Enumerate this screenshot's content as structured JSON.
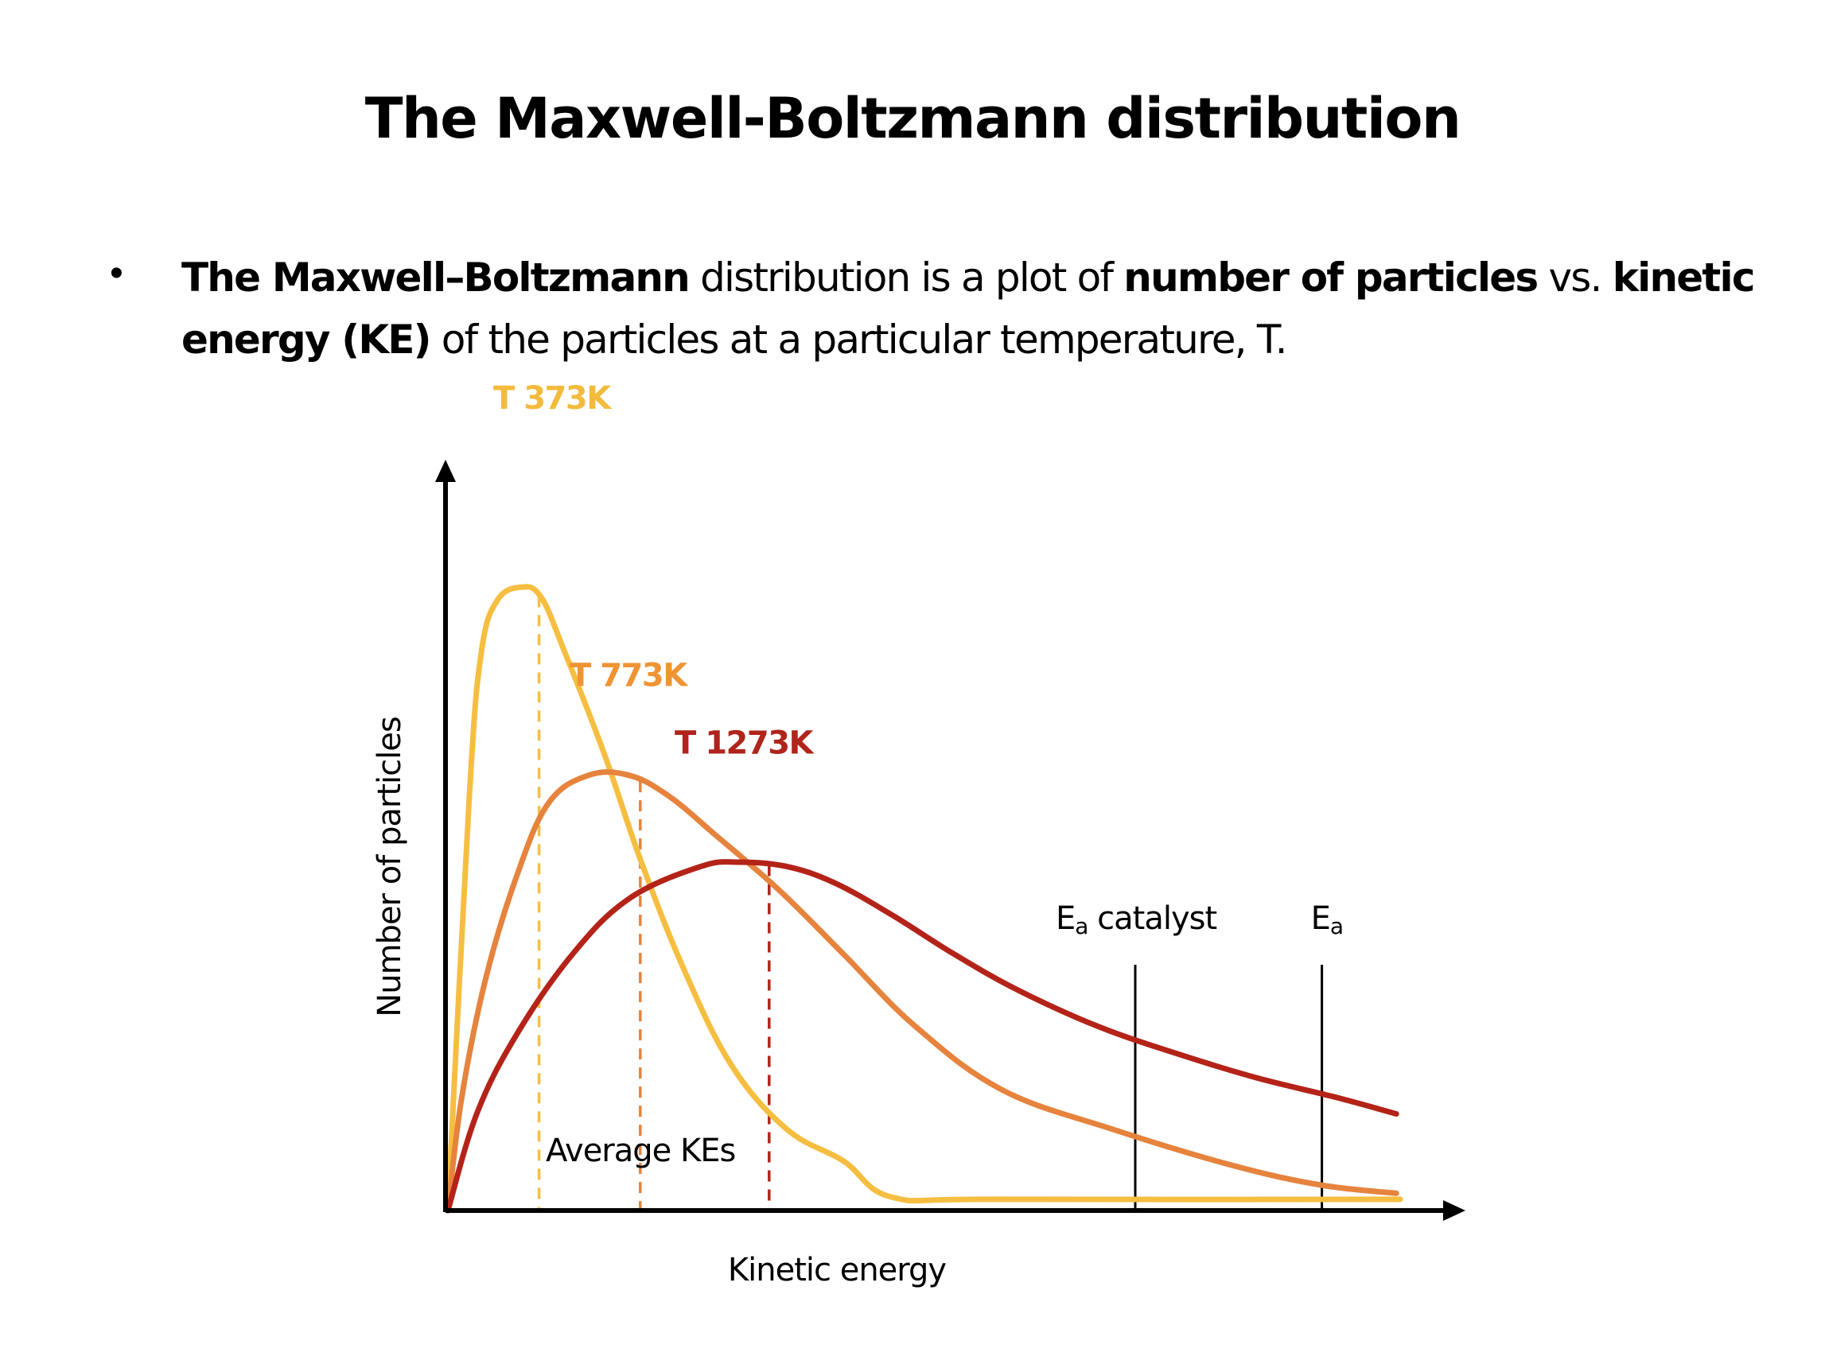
{
  "slide": {
    "title": "The Maxwell-Boltzmann distribution",
    "bullet": {
      "symbol": "•",
      "segments": [
        {
          "text": "The Maxwell–Boltzmann",
          "bold": true
        },
        {
          "text": " distribution is a plot of ",
          "bold": false
        },
        {
          "text": "number of particles",
          "bold": true
        },
        {
          "text": " vs. ",
          "bold": false
        },
        {
          "text": "kinetic energy (KE)",
          "bold": true
        },
        {
          "text": " of the particles at a particular temperature, T.",
          "bold": false
        }
      ]
    }
  },
  "chart_data": {
    "type": "line",
    "title": "",
    "xlabel": "Kinetic energy",
    "ylabel": "Number of particles",
    "xlim": [
      0,
      106
    ],
    "ylim": [
      0,
      100
    ],
    "grid": false,
    "ticks": "none",
    "legend": "inline labels above each curve peak",
    "series": [
      {
        "name": "T 373K",
        "color": "#F6BE41",
        "label_color": "#F3BB3D",
        "label_anchor": [
          5,
          107
        ],
        "average_ke": 9.8,
        "points": [
          [
            0.25,
            0
          ],
          [
            2.5,
            55.4
          ],
          [
            3.75,
            74.5
          ],
          [
            5.4,
            81.4
          ],
          [
            7.9,
            83.2
          ],
          [
            10,
            81.9
          ],
          [
            12.5,
            74.5
          ],
          [
            16.7,
            60.7
          ],
          [
            20.4,
            46.9
          ],
          [
            25,
            32.1
          ],
          [
            30,
            19.3
          ],
          [
            35.8,
            10.8
          ],
          [
            41.7,
            6.6
          ],
          [
            46.7,
            1.8
          ],
          [
            57.5,
            1.5
          ],
          [
            100,
            1.5
          ]
        ]
      },
      {
        "name": "T 773K",
        "color": "#E6833D",
        "label_color": "#EF9433",
        "label_anchor": [
          13,
          70
        ],
        "average_ke": 20.4,
        "points": [
          [
            0.25,
            0
          ],
          [
            1.7,
            15.1
          ],
          [
            4.2,
            30.9
          ],
          [
            7.5,
            44.8
          ],
          [
            10.8,
            54.4
          ],
          [
            15,
            58.1
          ],
          [
            19.2,
            58.1
          ],
          [
            23.3,
            55.4
          ],
          [
            28.3,
            50.1
          ],
          [
            35,
            42.7
          ],
          [
            41.7,
            34.2
          ],
          [
            49.2,
            24.6
          ],
          [
            58.3,
            16.1
          ],
          [
            70,
            10.8
          ],
          [
            82.5,
            6.0
          ],
          [
            91.7,
            3.4
          ],
          [
            99.6,
            2.3
          ]
        ]
      },
      {
        "name": "T 1273K",
        "color": "#B42318",
        "label_color": "#B0241B",
        "label_anchor": [
          24,
          61
        ],
        "average_ke": 33.9,
        "points": [
          [
            0.25,
            0
          ],
          [
            3.3,
            13
          ],
          [
            7.5,
            23.6
          ],
          [
            13.3,
            34.2
          ],
          [
            19.2,
            41.6
          ],
          [
            26.7,
            45.9
          ],
          [
            30.8,
            46.5
          ],
          [
            35.8,
            45.9
          ],
          [
            40.8,
            43.7
          ],
          [
            46.7,
            39.5
          ],
          [
            53.3,
            34.2
          ],
          [
            60,
            29.4
          ],
          [
            68.3,
            24.6
          ],
          [
            76.7,
            20.9
          ],
          [
            85,
            17.7
          ],
          [
            93.3,
            15.1
          ],
          [
            99.6,
            12.9
          ]
        ]
      }
    ],
    "annotations": {
      "average_ke_label": "Average KEs",
      "average_ke_label_anchor": [
        10.5,
        6.6
      ],
      "thresholds": [
        {
          "name": "Ea catalyst",
          "main": "E",
          "sub": "a",
          "rest": " catalyst",
          "x": 72.25,
          "top": 32.8
        },
        {
          "name": "Ea",
          "main": "E",
          "sub": "a",
          "rest": "",
          "x": 91.8,
          "top": 32.8
        }
      ]
    }
  }
}
